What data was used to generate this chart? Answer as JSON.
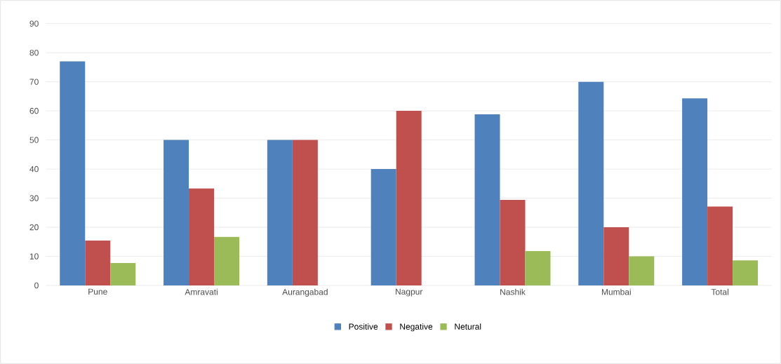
{
  "chart_data": {
    "type": "bar",
    "categories": [
      "Pune",
      "Amravati",
      "Aurangabad",
      "Nagpur",
      "Nashik",
      "Mumbai",
      "Total"
    ],
    "series": [
      {
        "name": "Positive",
        "color": "#4f81bd",
        "values": [
          77,
          50,
          50,
          40,
          58.8,
          70,
          64.3
        ]
      },
      {
        "name": "Negative",
        "color": "#c0504d",
        "values": [
          15.4,
          33.3,
          50,
          60,
          29.4,
          20,
          27.1
        ]
      },
      {
        "name": "Netural",
        "color": "#9bbb59",
        "values": [
          7.7,
          16.7,
          0,
          0,
          11.8,
          10,
          8.6
        ]
      }
    ],
    "ylim": [
      0,
      90
    ],
    "yticks": [
      0,
      10,
      20,
      30,
      40,
      50,
      60,
      70,
      80,
      90
    ],
    "grid": "y",
    "legend": "bottom"
  }
}
